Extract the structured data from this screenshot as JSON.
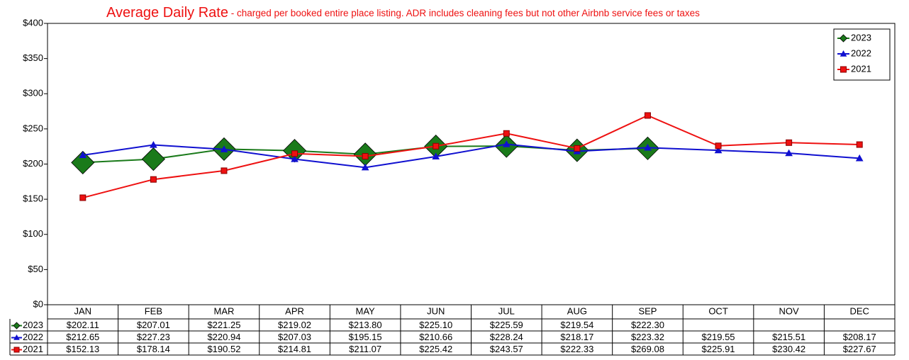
{
  "chart_data": {
    "type": "line",
    "title": "Average Daily Rate",
    "subtitle": " - charged per booked entire place listing. ADR includes cleaning fees but not other Airbnb service fees or taxes",
    "categories": [
      "JAN",
      "FEB",
      "MAR",
      "APR",
      "MAY",
      "JUN",
      "JUL",
      "AUG",
      "SEP",
      "OCT",
      "NOV",
      "DEC"
    ],
    "series": [
      {
        "name": "2023",
        "color": "#1a7a1a",
        "marker": "diamond",
        "values": [
          202.11,
          207.01,
          221.25,
          219.02,
          213.8,
          225.1,
          225.59,
          219.54,
          222.3,
          null,
          null,
          null
        ],
        "value_labels": [
          "$202.11",
          "$207.01",
          "$221.25",
          "$219.02",
          "$213.80",
          "$225.10",
          "$225.59",
          "$219.54",
          "$222.30",
          null,
          null,
          null
        ]
      },
      {
        "name": "2022",
        "color": "#1010d0",
        "marker": "triangle",
        "values": [
          212.65,
          227.23,
          220.94,
          207.03,
          195.15,
          210.66,
          228.24,
          218.17,
          223.32,
          219.55,
          215.51,
          208.17
        ],
        "value_labels": [
          "$212.65",
          "$227.23",
          "$220.94",
          "$207.03",
          "$195.15",
          "$210.66",
          "$228.24",
          "$218.17",
          "$223.32",
          "$219.55",
          "$215.51",
          "$208.17"
        ]
      },
      {
        "name": "2021",
        "color": "#ee1111",
        "marker": "square",
        "values": [
          152.13,
          178.14,
          190.52,
          214.81,
          211.07,
          225.42,
          243.57,
          222.33,
          269.08,
          225.91,
          230.42,
          227.67
        ],
        "value_labels": [
          "$152.13",
          "$178.14",
          "$190.52",
          "$214.81",
          "$211.07",
          "$225.42",
          "$243.57",
          "$222.33",
          "$269.08",
          "$225.91",
          "$230.42",
          "$227.67"
        ]
      }
    ],
    "ylim": [
      0,
      400
    ],
    "yticks": [
      {
        "value": 0,
        "label": "$0"
      },
      {
        "value": 50,
        "label": "$50"
      },
      {
        "value": 100,
        "label": "$100"
      },
      {
        "value": 150,
        "label": "$150"
      },
      {
        "value": 200,
        "label": "$200"
      },
      {
        "value": 250,
        "label": "$250"
      },
      {
        "value": 300,
        "label": "$300"
      },
      {
        "value": 350,
        "label": "$350"
      },
      {
        "value": 400,
        "label": "$400"
      }
    ],
    "grid": false,
    "legend": "top-right"
  }
}
